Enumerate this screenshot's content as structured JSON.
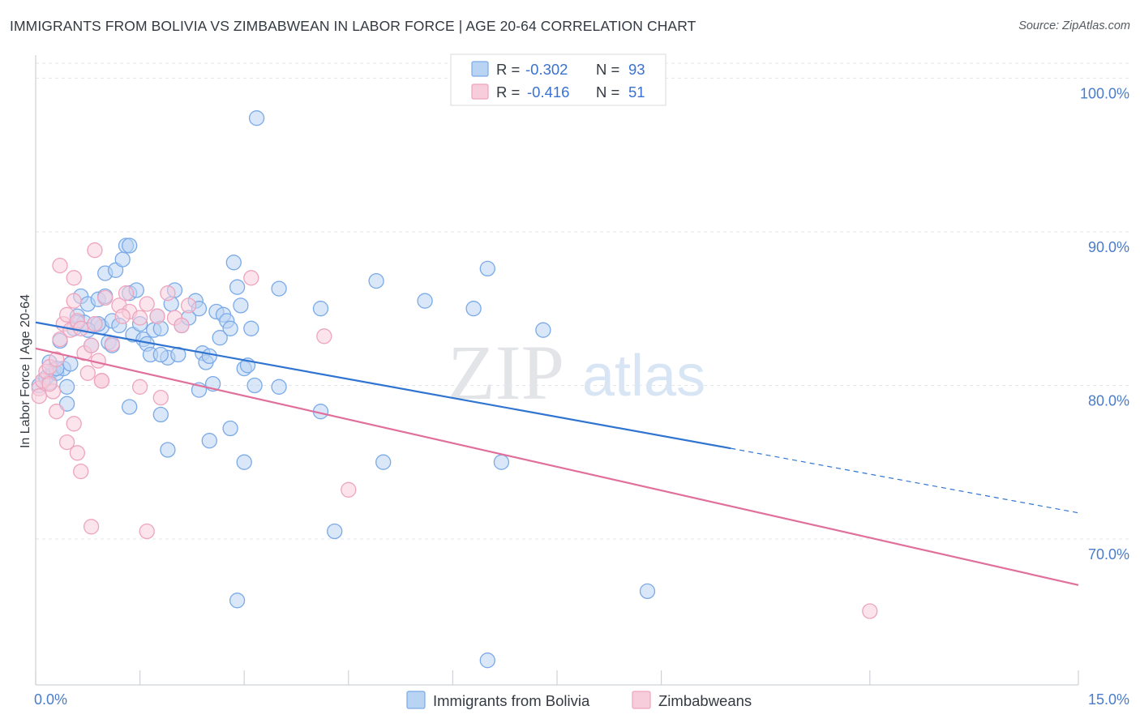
{
  "header": {
    "title": "IMMIGRANTS FROM BOLIVIA VS ZIMBABWEAN IN LABOR FORCE | AGE 20-64 CORRELATION CHART",
    "source": "Source: ZipAtlas.com"
  },
  "watermark": {
    "zip": "ZIP",
    "atlas": "atlas"
  },
  "chart_data": {
    "type": "scatter",
    "title": "IMMIGRANTS FROM BOLIVIA VS ZIMBABWEAN IN LABOR FORCE | AGE 20-64 CORRELATION CHART",
    "xlabel": "",
    "ylabel": "In Labor Force | Age 20-64",
    "xlim": [
      0,
      15
    ],
    "ylim": [
      60.5,
      101.5
    ],
    "x_tick_labels": {
      "min": "0.0%",
      "max": "15.0%"
    },
    "y_ticks": [
      {
        "value": 100,
        "label": "100.0%"
      },
      {
        "value": 90,
        "label": "90.0%"
      },
      {
        "value": 80,
        "label": "80.0%"
      },
      {
        "value": 70,
        "label": "70.0%"
      }
    ],
    "x_minor_ticks": [
      0,
      1.5,
      3,
      4.5,
      6,
      7.5,
      9,
      12,
      15
    ],
    "grid": true,
    "legend": {
      "position": "top-center",
      "entries": [
        {
          "series": "Immigrants from Bolivia",
          "r_label": "R =",
          "r_value": "-0.302",
          "n_label": "N =",
          "n_value": "93"
        },
        {
          "series": "Zimbabweans",
          "r_label": "R =",
          "r_value": "-0.416",
          "n_label": "N =",
          "n_value": "51"
        }
      ]
    },
    "series": [
      {
        "name": "Immigrants from Bolivia",
        "color": "#7aaae8",
        "fill": "#b9d3f3",
        "line_color": "#2f74d0",
        "trend": {
          "x0": 0,
          "y0": 84.1,
          "x1": 10.0,
          "y1": 75.9,
          "dash_to_x": 15,
          "dash_to_y": 71.7
        },
        "points": [
          [
            0.05,
            80.0
          ],
          [
            0.1,
            80.3
          ],
          [
            0.15,
            80.5
          ],
          [
            0.2,
            80.2
          ],
          [
            0.25,
            81.0
          ],
          [
            0.3,
            80.8
          ],
          [
            0.35,
            82.9
          ],
          [
            0.4,
            81.1
          ],
          [
            0.45,
            78.8
          ],
          [
            0.5,
            81.4
          ],
          [
            0.55,
            83.7
          ],
          [
            0.6,
            84.5
          ],
          [
            0.65,
            85.8
          ],
          [
            0.7,
            84.1
          ],
          [
            0.75,
            85.3
          ],
          [
            0.8,
            82.6
          ],
          [
            0.85,
            84.0
          ],
          [
            0.9,
            85.6
          ],
          [
            0.95,
            83.8
          ],
          [
            1.0,
            85.8
          ],
          [
            1.0,
            87.3
          ],
          [
            1.05,
            82.8
          ],
          [
            1.1,
            84.2
          ],
          [
            1.15,
            87.5
          ],
          [
            1.2,
            83.9
          ],
          [
            1.25,
            88.2
          ],
          [
            1.3,
            89.1
          ],
          [
            1.35,
            86.0
          ],
          [
            1.4,
            83.3
          ],
          [
            1.45,
            86.2
          ],
          [
            1.5,
            84.0
          ],
          [
            1.55,
            83.0
          ],
          [
            1.6,
            82.7
          ],
          [
            1.65,
            82.0
          ],
          [
            1.7,
            83.6
          ],
          [
            1.75,
            84.5
          ],
          [
            1.8,
            83.7
          ],
          [
            1.9,
            81.8
          ],
          [
            1.95,
            85.3
          ],
          [
            2.0,
            86.2
          ],
          [
            2.05,
            82.0
          ],
          [
            2.1,
            83.9
          ],
          [
            2.2,
            84.4
          ],
          [
            2.3,
            85.5
          ],
          [
            2.35,
            85.0
          ],
          [
            2.4,
            82.1
          ],
          [
            2.45,
            81.5
          ],
          [
            2.5,
            81.9
          ],
          [
            2.55,
            80.1
          ],
          [
            2.6,
            84.8
          ],
          [
            2.65,
            83.1
          ],
          [
            2.7,
            84.6
          ],
          [
            2.75,
            84.2
          ],
          [
            2.8,
            83.7
          ],
          [
            2.85,
            88.0
          ],
          [
            2.9,
            86.4
          ],
          [
            2.95,
            85.2
          ],
          [
            3.0,
            81.1
          ],
          [
            3.05,
            81.3
          ],
          [
            3.1,
            83.7
          ],
          [
            3.15,
            80.0
          ],
          [
            3.5,
            86.3
          ],
          [
            4.1,
            85.0
          ],
          [
            4.9,
            86.8
          ],
          [
            5.6,
            85.5
          ],
          [
            6.3,
            85.0
          ],
          [
            6.5,
            87.6
          ],
          [
            7.3,
            83.6
          ],
          [
            1.35,
            89.1
          ],
          [
            3.18,
            97.4
          ],
          [
            1.35,
            78.6
          ],
          [
            1.8,
            78.1
          ],
          [
            1.9,
            75.8
          ],
          [
            2.35,
            79.7
          ],
          [
            2.5,
            76.4
          ],
          [
            2.8,
            77.2
          ],
          [
            3.0,
            75.0
          ],
          [
            3.5,
            79.9
          ],
          [
            4.1,
            78.3
          ],
          [
            5.0,
            75.0
          ],
          [
            6.7,
            75.0
          ],
          [
            4.3,
            70.5
          ],
          [
            2.9,
            66.0
          ],
          [
            8.8,
            66.6
          ],
          [
            6.5,
            62.1
          ],
          [
            1.8,
            82.0
          ],
          [
            0.9,
            84.0
          ],
          [
            1.1,
            82.6
          ],
          [
            0.75,
            83.6
          ],
          [
            0.6,
            84.1
          ],
          [
            0.45,
            79.9
          ],
          [
            0.2,
            81.5
          ],
          [
            0.3,
            81.1
          ]
        ]
      },
      {
        "name": "Zimbabweans",
        "color": "#eea4bd",
        "fill": "#f7cddc",
        "line_color": "#e0709b",
        "trend": {
          "x0": 0,
          "y0": 82.4,
          "x1": 15,
          "y1": 67.0
        },
        "points": [
          [
            0.05,
            79.8
          ],
          [
            0.1,
            80.3
          ],
          [
            0.15,
            80.9
          ],
          [
            0.2,
            81.2
          ],
          [
            0.25,
            79.6
          ],
          [
            0.3,
            81.7
          ],
          [
            0.35,
            83.0
          ],
          [
            0.4,
            84.0
          ],
          [
            0.45,
            84.6
          ],
          [
            0.5,
            83.6
          ],
          [
            0.55,
            85.5
          ],
          [
            0.6,
            84.2
          ],
          [
            0.65,
            83.7
          ],
          [
            0.7,
            82.1
          ],
          [
            0.75,
            80.8
          ],
          [
            0.8,
            82.6
          ],
          [
            0.85,
            84.0
          ],
          [
            0.9,
            81.6
          ],
          [
            0.95,
            80.3
          ],
          [
            1.0,
            85.7
          ],
          [
            1.1,
            82.7
          ],
          [
            1.2,
            85.2
          ],
          [
            1.3,
            86.0
          ],
          [
            1.35,
            84.8
          ],
          [
            1.5,
            84.4
          ],
          [
            1.6,
            85.3
          ],
          [
            1.75,
            84.5
          ],
          [
            1.9,
            86.0
          ],
          [
            2.0,
            84.4
          ],
          [
            2.1,
            83.9
          ],
          [
            0.35,
            87.8
          ],
          [
            0.55,
            87.0
          ],
          [
            0.85,
            88.8
          ],
          [
            3.1,
            87.0
          ],
          [
            4.15,
            83.2
          ],
          [
            0.3,
            78.3
          ],
          [
            0.55,
            77.5
          ],
          [
            0.45,
            76.3
          ],
          [
            0.6,
            75.6
          ],
          [
            0.65,
            74.4
          ],
          [
            0.95,
            80.3
          ],
          [
            1.5,
            79.9
          ],
          [
            1.8,
            79.2
          ],
          [
            4.5,
            73.2
          ],
          [
            0.8,
            70.8
          ],
          [
            1.6,
            70.5
          ],
          [
            0.05,
            79.3
          ],
          [
            0.2,
            80.1
          ],
          [
            1.25,
            84.5
          ],
          [
            12.0,
            65.3
          ],
          [
            2.2,
            85.2
          ]
        ]
      }
    ]
  }
}
